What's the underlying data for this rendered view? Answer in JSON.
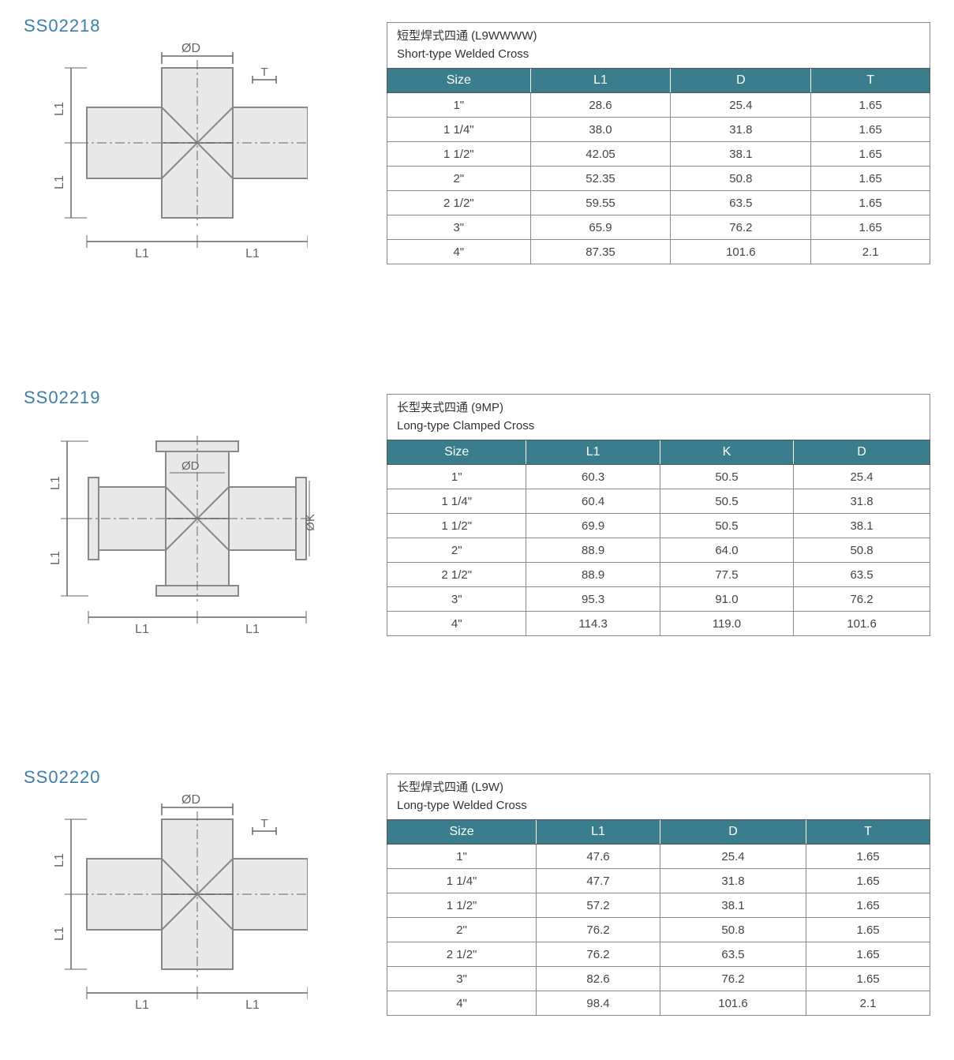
{
  "colors": {
    "part_code": "#3b7ea8",
    "header_bg": "#3a7d8c",
    "header_text": "#ffffff",
    "border": "#555555",
    "cell_border": "#888888",
    "text": "#333333",
    "background": "#ffffff",
    "diagram_fill": "#e8e8e8",
    "diagram_stroke": "#888888",
    "dim_line": "#666666"
  },
  "typography": {
    "part_code_fontsize": 22,
    "title_fontsize": 15,
    "header_fontsize": 16,
    "cell_fontsize": 15
  },
  "sections": [
    {
      "code": "SS02218",
      "diagram_type": "welded",
      "diagram_labels": {
        "top": "ØD",
        "right": "T",
        "left_top": "L1",
        "left_bottom": "L1",
        "bottom_left": "L1",
        "bottom_right": "L1"
      },
      "title_cn": "短型焊式四通 (L9WWWW)",
      "title_en": "Short-type Welded Cross",
      "columns": [
        "Size",
        "L1",
        "D",
        "T"
      ],
      "rows": [
        [
          "1\"",
          "28.6",
          "25.4",
          "1.65"
        ],
        [
          "1 1/4\"",
          "38.0",
          "31.8",
          "1.65"
        ],
        [
          "1 1/2\"",
          "42.05",
          "38.1",
          "1.65"
        ],
        [
          "2\"",
          "52.35",
          "50.8",
          "1.65"
        ],
        [
          "2 1/2\"",
          "59.55",
          "63.5",
          "1.65"
        ],
        [
          "3\"",
          "65.9",
          "76.2",
          "1.65"
        ],
        [
          "4\"",
          "87.35",
          "101.6",
          "2.1"
        ]
      ]
    },
    {
      "code": "SS02219",
      "diagram_type": "clamped",
      "diagram_labels": {
        "top": "ØD",
        "right": "ØK",
        "left_top": "L1",
        "left_bottom": "L1",
        "bottom_left": "L1",
        "bottom_right": "L1"
      },
      "title_cn": "长型夹式四通 (9MP)",
      "title_en": "Long-type Clamped Cross",
      "columns": [
        "Size",
        "L1",
        "K",
        "D"
      ],
      "rows": [
        [
          "1\"",
          "60.3",
          "50.5",
          "25.4"
        ],
        [
          "1 1/4\"",
          "60.4",
          "50.5",
          "31.8"
        ],
        [
          "1 1/2\"",
          "69.9",
          "50.5",
          "38.1"
        ],
        [
          "2\"",
          "88.9",
          "64.0",
          "50.8"
        ],
        [
          "2 1/2\"",
          "88.9",
          "77.5",
          "63.5"
        ],
        [
          "3\"",
          "95.3",
          "91.0",
          "76.2"
        ],
        [
          "4\"",
          "114.3",
          "119.0",
          "101.6"
        ]
      ]
    },
    {
      "code": "SS02220",
      "diagram_type": "welded",
      "diagram_labels": {
        "top": "ØD",
        "right": "T",
        "left_top": "L1",
        "left_bottom": "L1",
        "bottom_left": "L1",
        "bottom_right": "L1"
      },
      "title_cn": "长型焊式四通 (L9W)",
      "title_en": "Long-type Welded Cross",
      "columns": [
        "Size",
        "L1",
        "D",
        "T"
      ],
      "rows": [
        [
          "1\"",
          "47.6",
          "25.4",
          "1.65"
        ],
        [
          "1 1/4\"",
          "47.7",
          "31.8",
          "1.65"
        ],
        [
          "1 1/2\"",
          "57.2",
          "38.1",
          "1.65"
        ],
        [
          "2\"",
          "76.2",
          "50.8",
          "1.65"
        ],
        [
          "2 1/2\"",
          "76.2",
          "63.5",
          "1.65"
        ],
        [
          "3\"",
          "82.6",
          "76.2",
          "1.65"
        ],
        [
          "4\"",
          "98.4",
          "101.6",
          "2.1"
        ]
      ]
    }
  ]
}
